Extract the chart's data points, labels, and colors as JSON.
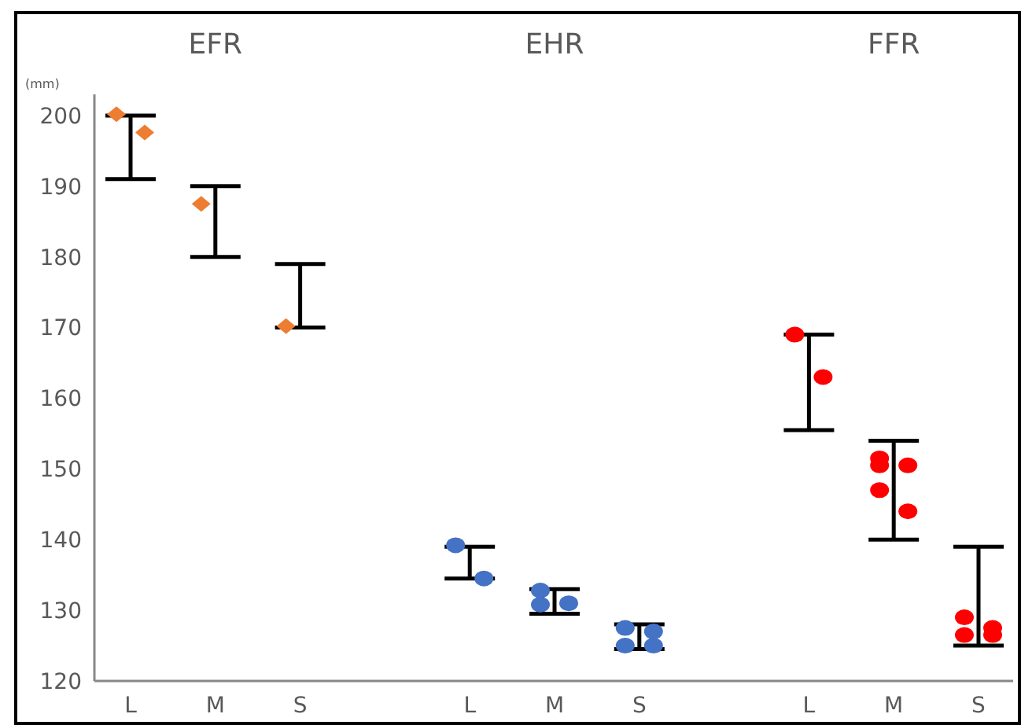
{
  "chart_data": {
    "type": "scatter",
    "ylabel": "(mm)",
    "annotations": [
      "EFR",
      "EHR",
      "FFR"
    ],
    "categories": [
      "L",
      "M",
      "S",
      "L",
      "M",
      "S",
      "L",
      "M",
      "S"
    ],
    "ylim": [
      120,
      203
    ],
    "yticks": [
      120,
      130,
      140,
      150,
      160,
      170,
      180,
      190,
      200
    ],
    "grid": false,
    "series": [
      {
        "type": "bar",
        "color": "#000000",
        "base": [
          191,
          180,
          170,
          134.5,
          129.5,
          124.5,
          155.5,
          140,
          125
        ],
        "values": [
          9,
          10,
          9,
          4.5,
          3.5,
          3.5,
          13.5,
          14,
          14
        ]
      },
      {
        "marker": "diamond",
        "color": "#ed7d31",
        "values": [
          200.2,
          187.5,
          170.2,
          null,
          null,
          null,
          null,
          null,
          null
        ]
      },
      {
        "marker": "diamond",
        "color": "#ed7d31",
        "values": [
          197.6,
          null,
          null,
          null,
          null,
          null,
          null,
          null,
          null
        ]
      },
      {
        "marker": "circle",
        "color": "#4472c4",
        "values": [
          null,
          null,
          null,
          139.2,
          132.8,
          127.5,
          null,
          null,
          null
        ]
      },
      {
        "marker": "circle",
        "color": "#4472c4",
        "values": [
          null,
          null,
          null,
          134.5,
          131,
          127,
          null,
          null,
          null
        ]
      },
      {
        "marker": "circle",
        "color": "#4472c4",
        "values": [
          null,
          null,
          null,
          null,
          130.8,
          125,
          null,
          null,
          null
        ]
      },
      {
        "marker": "circle",
        "color": "#4472c4",
        "values": [
          null,
          null,
          null,
          null,
          null,
          125,
          null,
          null,
          null
        ]
      },
      {
        "marker": "circle",
        "color": "#ff0000",
        "values": [
          null,
          null,
          null,
          null,
          null,
          null,
          169,
          151.5,
          129
        ]
      },
      {
        "marker": "circle",
        "color": "#ff0000",
        "values": [
          null,
          null,
          null,
          null,
          null,
          null,
          163,
          150.5,
          127.5
        ]
      },
      {
        "marker": "circle",
        "color": "#ff0000",
        "values": [
          null,
          null,
          null,
          null,
          null,
          null,
          null,
          150.5,
          126.5
        ]
      },
      {
        "marker": "circle",
        "color": "#ff0000",
        "values": [
          null,
          null,
          null,
          null,
          null,
          null,
          null,
          144,
          126.5
        ]
      },
      {
        "marker": "circle",
        "color": "#ff0000",
        "values": [
          null,
          null,
          null,
          null,
          null,
          null,
          null,
          147,
          null
        ]
      }
    ]
  }
}
